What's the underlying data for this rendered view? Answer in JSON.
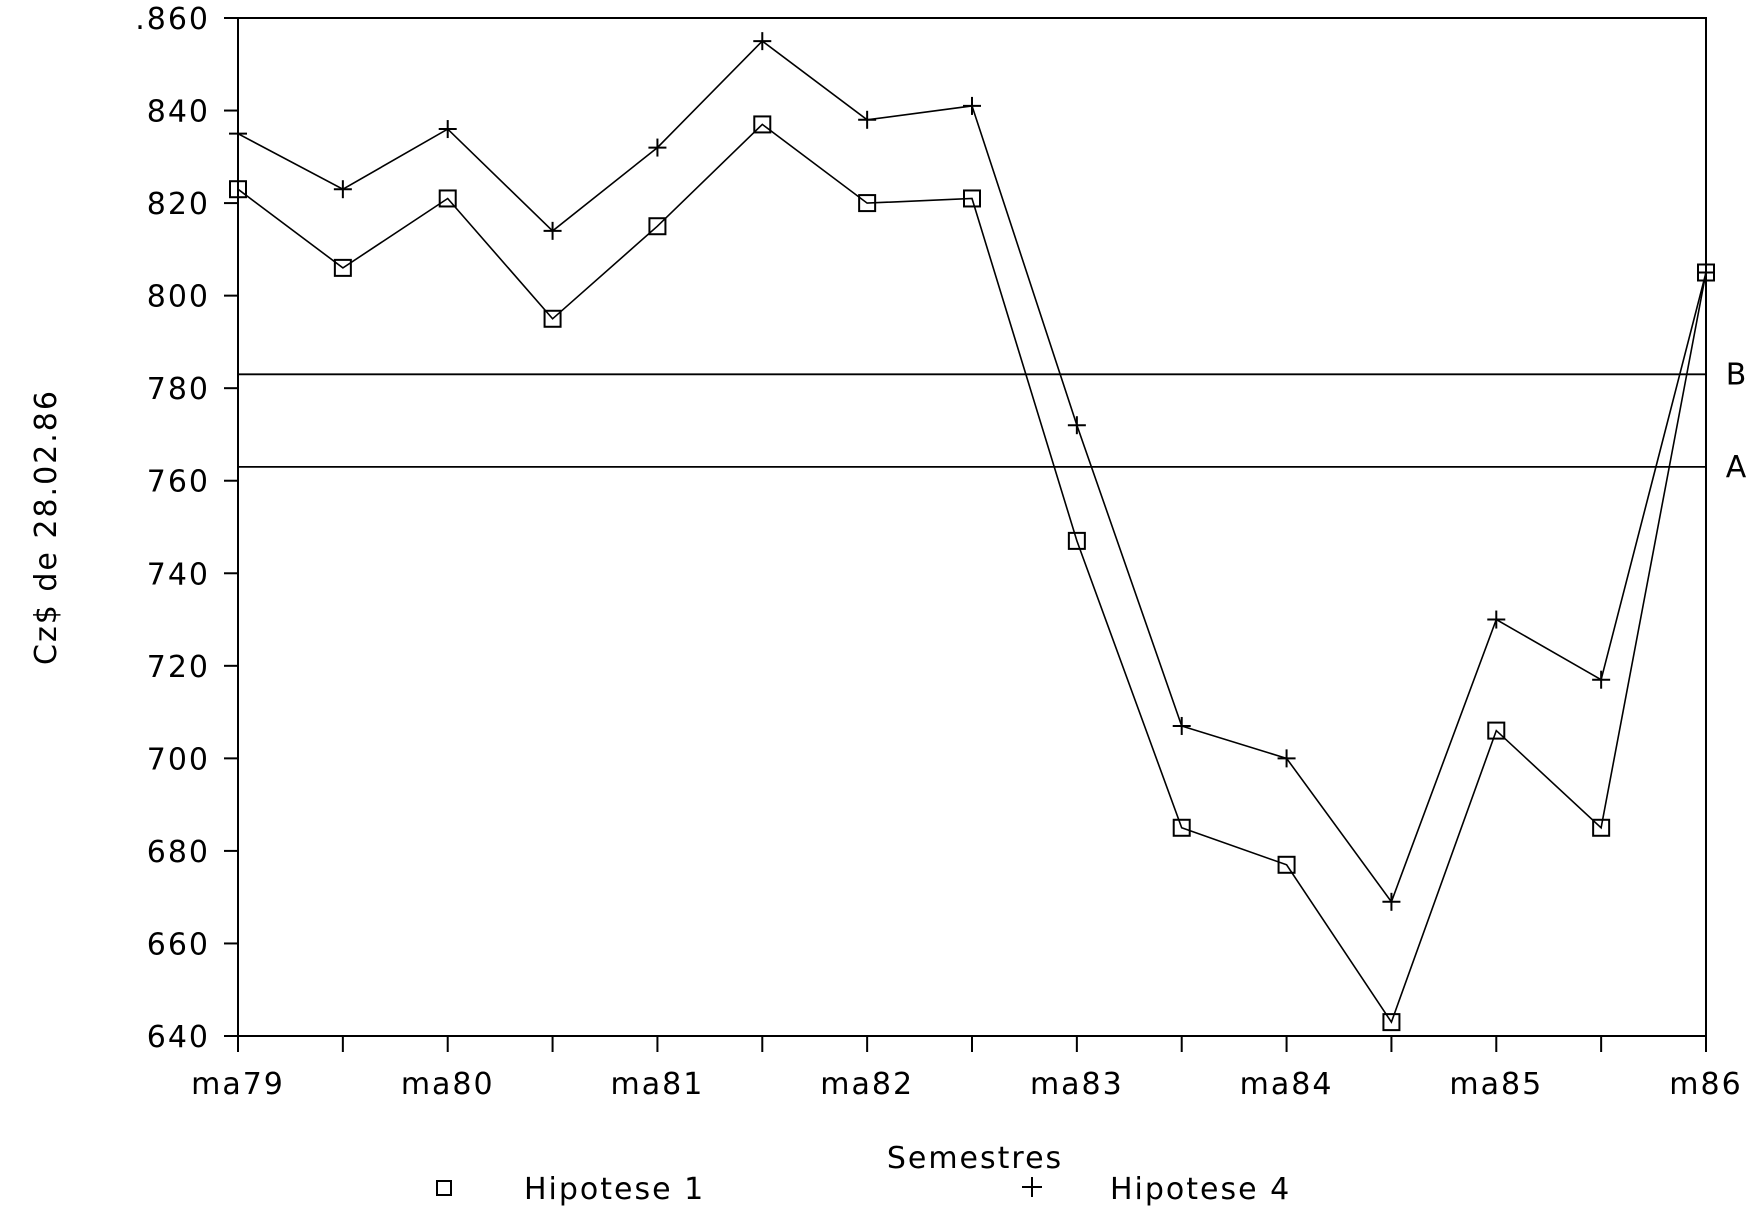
{
  "chart_data": {
    "type": "line",
    "title": "",
    "xlabel": "Semestres",
    "ylabel": "Cz$ de 28.02.86",
    "ylim": [
      640,
      860
    ],
    "yticks": [
      640,
      660,
      680,
      700,
      720,
      740,
      760,
      780,
      800,
      820,
      840,
      860
    ],
    "ytick_labels": [
      "640",
      "660",
      "680",
      "700",
      "720",
      "740",
      "760",
      "780",
      "800",
      "820",
      "840",
      ".860"
    ],
    "categories": [
      "ma79",
      "",
      "ma80",
      "",
      "ma81",
      "",
      "ma82",
      "",
      "ma83",
      "",
      "ma84",
      "",
      "ma85",
      "",
      "m86"
    ],
    "x_tick_labels": [
      "ma79",
      "ma80",
      "ma81",
      "ma82",
      "ma83",
      "ma84",
      "ma85",
      "m86"
    ],
    "series": [
      {
        "name": "Hipotese 1",
        "marker": "□",
        "values": [
          823,
          806,
          821,
          795,
          815,
          837,
          820,
          821,
          747,
          685,
          677,
          643,
          706,
          685,
          805
        ]
      },
      {
        "name": "Hipotese 4",
        "marker": "+",
        "values": [
          835,
          823,
          836,
          814,
          832,
          855,
          838,
          841,
          772,
          707,
          700,
          669,
          730,
          717,
          805
        ]
      }
    ],
    "reference_lines": [
      {
        "label": "B",
        "value": 783
      },
      {
        "label": "A",
        "value": 763
      }
    ],
    "grid": false,
    "legend_position": "bottom",
    "colors": {
      "line": "#000000",
      "background": "#ffffff"
    }
  }
}
